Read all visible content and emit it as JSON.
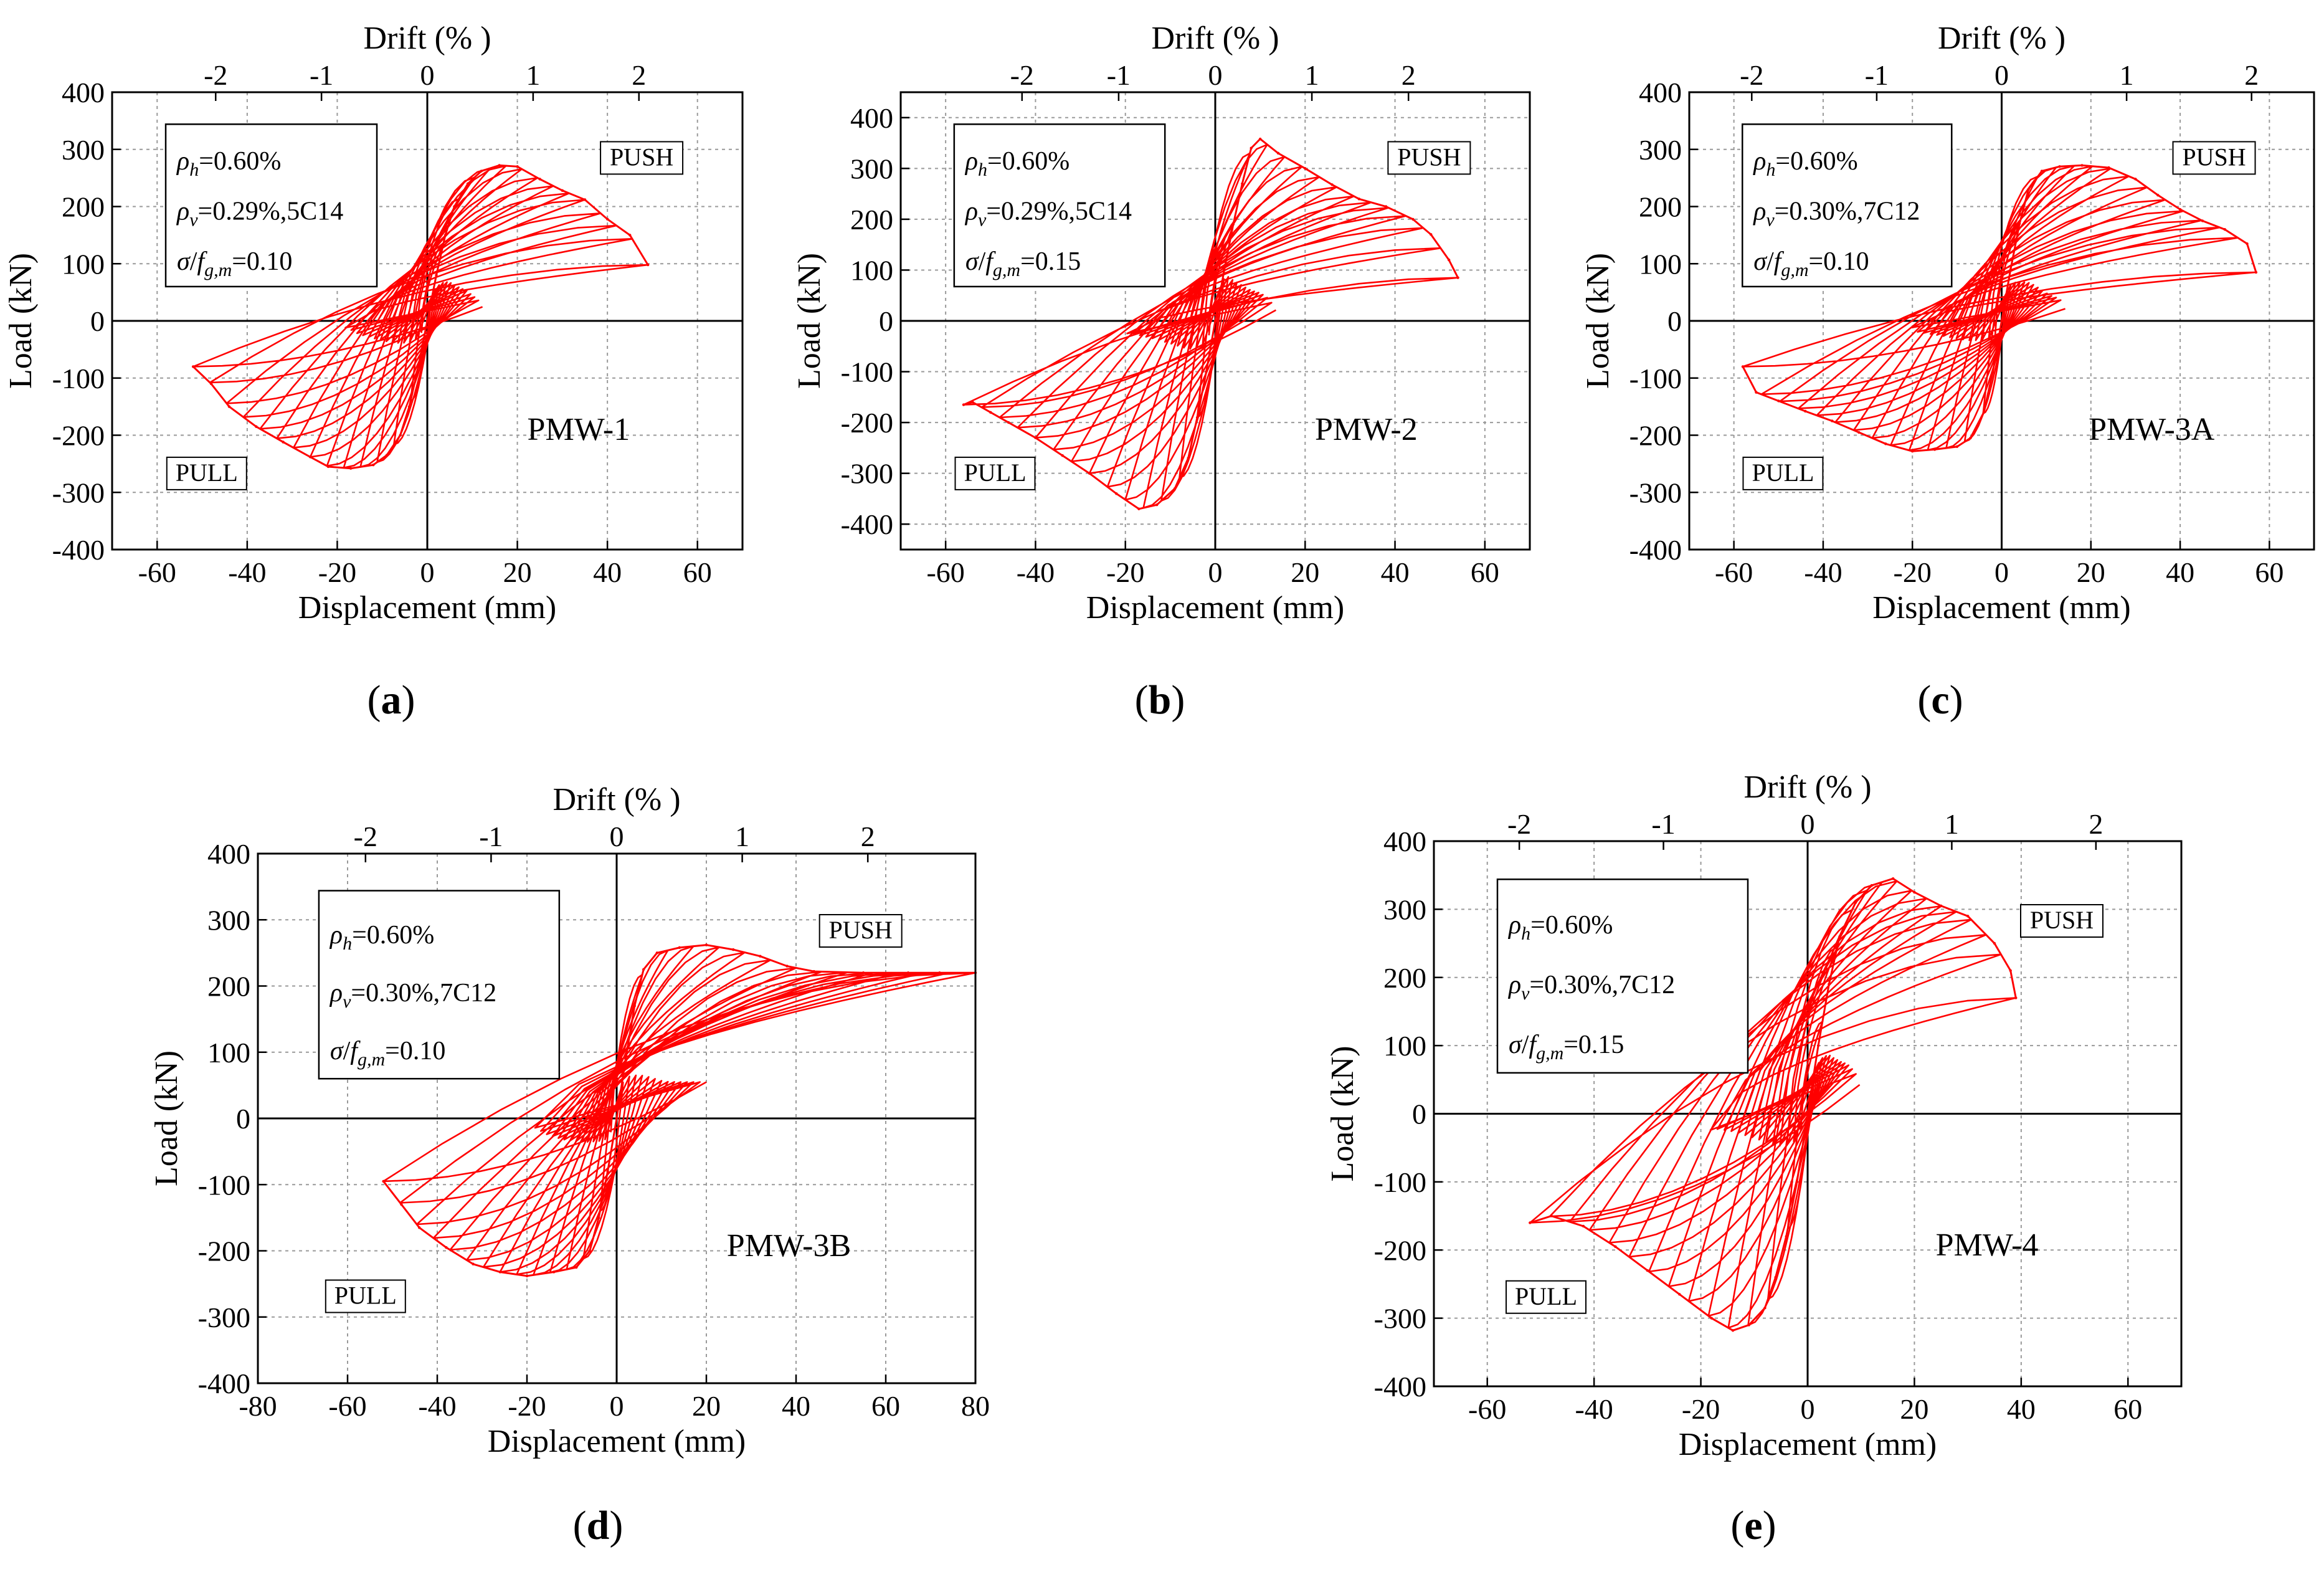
{
  "figure": {
    "panel_labels": [
      "a",
      "b",
      "c",
      "d",
      "e"
    ]
  },
  "colors": {
    "curve": "#ff0000",
    "axis": "#000000",
    "grid": "#9a9a9a"
  },
  "chart_data": [
    {
      "type": "line",
      "label": "a",
      "specimen": "PMW-1",
      "xlabel": "Displacement (mm)",
      "ylabel": "Load (kN)",
      "top_axis_label": "Drift (% )",
      "xlim": [
        -70,
        70
      ],
      "ylim": [
        -400,
        400
      ],
      "x_ticks": [
        -60,
        -40,
        -20,
        0,
        20,
        40,
        60
      ],
      "y_ticks": [
        -400,
        -300,
        -200,
        -100,
        0,
        100,
        200,
        300,
        400
      ],
      "drift_ticks": [
        -2,
        -1,
        0,
        1,
        2
      ],
      "mm_per_drift_percent": 23.5,
      "grid": true,
      "push_label": "PUSH",
      "pull_label": "PULL",
      "params": {
        "rho_h": "=0.60%",
        "rho_v": "=0.29%,5C14",
        "axial": "=0.10"
      },
      "envelope": {
        "push": [
          [
            0,
            0
          ],
          [
            2,
            80
          ],
          [
            4,
            150
          ],
          [
            6,
            200
          ],
          [
            9,
            240
          ],
          [
            12,
            262
          ],
          [
            16,
            272
          ],
          [
            20,
            270
          ],
          [
            25,
            248
          ],
          [
            30,
            228
          ],
          [
            35,
            212
          ],
          [
            40,
            178
          ],
          [
            45,
            150
          ],
          [
            49,
            98
          ]
        ],
        "pull": [
          [
            0,
            0
          ],
          [
            -2,
            -80
          ],
          [
            -4,
            -150
          ],
          [
            -6,
            -200
          ],
          [
            -9,
            -235
          ],
          [
            -12,
            -252
          ],
          [
            -17,
            -258
          ],
          [
            -22,
            -255
          ],
          [
            -26,
            -238
          ],
          [
            -32,
            -212
          ],
          [
            -38,
            -185
          ],
          [
            -44,
            -150
          ],
          [
            -48,
            -110
          ],
          [
            -52,
            -80
          ]
        ]
      }
    },
    {
      "type": "line",
      "label": "b",
      "specimen": "PMW-2",
      "xlabel": "Displacement (mm)",
      "ylabel": "Load (kN)",
      "top_axis_label": "Drift (% )",
      "xlim": [
        -70,
        70
      ],
      "ylim": [
        -450,
        450
      ],
      "x_ticks": [
        -60,
        -40,
        -20,
        0,
        20,
        40,
        60
      ],
      "y_ticks": [
        -400,
        -300,
        -200,
        -100,
        0,
        100,
        200,
        300,
        400
      ],
      "drift_ticks": [
        -2,
        -1,
        0,
        1,
        2
      ],
      "mm_per_drift_percent": 21.5,
      "grid": true,
      "push_label": "PUSH",
      "pull_label": "PULL",
      "params": {
        "rho_h": "=0.60%",
        "rho_v": "=0.29%,5C14",
        "axial": "=0.15"
      },
      "envelope": {
        "push": [
          [
            0,
            0
          ],
          [
            2,
            100
          ],
          [
            4,
            190
          ],
          [
            6,
            270
          ],
          [
            8,
            340
          ],
          [
            10,
            358
          ],
          [
            14,
            330
          ],
          [
            20,
            300
          ],
          [
            26,
            268
          ],
          [
            32,
            240
          ],
          [
            38,
            225
          ],
          [
            44,
            200
          ],
          [
            48,
            170
          ],
          [
            52,
            120
          ],
          [
            54,
            85
          ]
        ],
        "pull": [
          [
            0,
            0
          ],
          [
            -2,
            -100
          ],
          [
            -4,
            -190
          ],
          [
            -6,
            -270
          ],
          [
            -9,
            -330
          ],
          [
            -13,
            -362
          ],
          [
            -17,
            -370
          ],
          [
            -22,
            -340
          ],
          [
            -28,
            -300
          ],
          [
            -34,
            -265
          ],
          [
            -40,
            -230
          ],
          [
            -46,
            -200
          ],
          [
            -50,
            -180
          ],
          [
            -54,
            -160
          ],
          [
            -56,
            -165
          ]
        ]
      }
    },
    {
      "type": "line",
      "label": "c",
      "specimen": "PMW-3A",
      "xlabel": "Displacement (mm)",
      "ylabel": "Load (kN)",
      "top_axis_label": "Drift (% )",
      "xlim": [
        -70,
        70
      ],
      "ylim": [
        -400,
        400
      ],
      "x_ticks": [
        -60,
        -40,
        -20,
        0,
        20,
        40,
        60
      ],
      "y_ticks": [
        -400,
        -300,
        -200,
        -100,
        0,
        100,
        200,
        300,
        400
      ],
      "drift_ticks": [
        -2,
        -1,
        0,
        1,
        2
      ],
      "mm_per_drift_percent": 28.0,
      "grid": true,
      "push_label": "PUSH",
      "pull_label": "PULL",
      "params": {
        "rho_h": "=0.60%",
        "rho_v": "=0.30%,7C12",
        "axial": "=0.10"
      },
      "envelope": {
        "push": [
          [
            0,
            0
          ],
          [
            2,
            90
          ],
          [
            4,
            170
          ],
          [
            6,
            230
          ],
          [
            9,
            262
          ],
          [
            13,
            270
          ],
          [
            18,
            272
          ],
          [
            24,
            268
          ],
          [
            30,
            248
          ],
          [
            35,
            220
          ],
          [
            40,
            195
          ],
          [
            45,
            175
          ],
          [
            50,
            160
          ],
          [
            55,
            135
          ],
          [
            57,
            85
          ]
        ],
        "pull": [
          [
            0,
            0
          ],
          [
            -2,
            -90
          ],
          [
            -4,
            -160
          ],
          [
            -7,
            -205
          ],
          [
            -10,
            -220
          ],
          [
            -15,
            -225
          ],
          [
            -20,
            -228
          ],
          [
            -26,
            -215
          ],
          [
            -32,
            -195
          ],
          [
            -38,
            -175
          ],
          [
            -44,
            -158
          ],
          [
            -50,
            -140
          ],
          [
            -55,
            -125
          ],
          [
            -58,
            -80
          ]
        ]
      }
    },
    {
      "type": "line",
      "label": "d",
      "specimen": "PMW-3B",
      "xlabel": "Displacement (mm)",
      "ylabel": "Load (kN)",
      "top_axis_label": "Drift (% )",
      "xlim": [
        -80,
        80
      ],
      "ylim": [
        -400,
        400
      ],
      "x_ticks": [
        -80,
        -60,
        -40,
        -20,
        0,
        20,
        40,
        60,
        80
      ],
      "y_ticks": [
        -400,
        -300,
        -200,
        -100,
        0,
        100,
        200,
        300,
        400
      ],
      "drift_ticks": [
        -2,
        -1,
        0,
        1,
        2
      ],
      "mm_per_drift_percent": 28.0,
      "grid": true,
      "push_label": "PUSH",
      "pull_label": "PULL",
      "params": {
        "rho_h": "=0.60%",
        "rho_v": "=0.30%,7C12",
        "axial": "=0.10"
      },
      "envelope": {
        "push": [
          [
            0,
            0
          ],
          [
            2,
            90
          ],
          [
            4,
            170
          ],
          [
            6,
            225
          ],
          [
            9,
            250
          ],
          [
            14,
            258
          ],
          [
            20,
            262
          ],
          [
            26,
            255
          ],
          [
            32,
            245
          ],
          [
            38,
            230
          ],
          [
            44,
            222
          ],
          [
            55,
            220
          ],
          [
            65,
            220
          ],
          [
            72,
            220
          ],
          [
            80,
            220
          ]
        ],
        "pull": [
          [
            0,
            0
          ],
          [
            -2,
            -80
          ],
          [
            -4,
            -150
          ],
          [
            -6,
            -200
          ],
          [
            -9,
            -225
          ],
          [
            -14,
            -232
          ],
          [
            -20,
            -238
          ],
          [
            -26,
            -232
          ],
          [
            -32,
            -220
          ],
          [
            -38,
            -195
          ],
          [
            -44,
            -165
          ],
          [
            -48,
            -130
          ],
          [
            -52,
            -95
          ]
        ]
      }
    },
    {
      "type": "line",
      "label": "e",
      "specimen": "PMW-4",
      "xlabel": "Displacement (mm)",
      "ylabel": "Load (kN)",
      "top_axis_label": "Drift (% )",
      "xlim": [
        -70,
        70
      ],
      "ylim": [
        -400,
        400
      ],
      "x_ticks": [
        -60,
        -40,
        -20,
        0,
        20,
        40,
        60
      ],
      "y_ticks": [
        -400,
        -300,
        -200,
        -100,
        0,
        100,
        200,
        300,
        400
      ],
      "drift_ticks": [
        -2,
        -1,
        0,
        1,
        2
      ],
      "mm_per_drift_percent": 27.0,
      "grid": true,
      "push_label": "PUSH",
      "pull_label": "PULL",
      "params": {
        "rho_h": "=0.60%",
        "rho_v": "=0.30%,7C12",
        "axial": "=0.15"
      },
      "envelope": {
        "push": [
          [
            0,
            0
          ],
          [
            2,
            100
          ],
          [
            4,
            190
          ],
          [
            6,
            260
          ],
          [
            9,
            310
          ],
          [
            12,
            335
          ],
          [
            16,
            345
          ],
          [
            20,
            325
          ],
          [
            25,
            305
          ],
          [
            30,
            290
          ],
          [
            35,
            250
          ],
          [
            38,
            210
          ],
          [
            39,
            170
          ]
        ],
        "pull": [
          [
            0,
            0
          ],
          [
            -2,
            -100
          ],
          [
            -4,
            -180
          ],
          [
            -6,
            -240
          ],
          [
            -8,
            -285
          ],
          [
            -11,
            -310
          ],
          [
            -14,
            -318
          ],
          [
            -18,
            -300
          ],
          [
            -24,
            -265
          ],
          [
            -30,
            -230
          ],
          [
            -36,
            -195
          ],
          [
            -42,
            -165
          ],
          [
            -48,
            -150
          ],
          [
            -52,
            -160
          ]
        ]
      }
    }
  ]
}
